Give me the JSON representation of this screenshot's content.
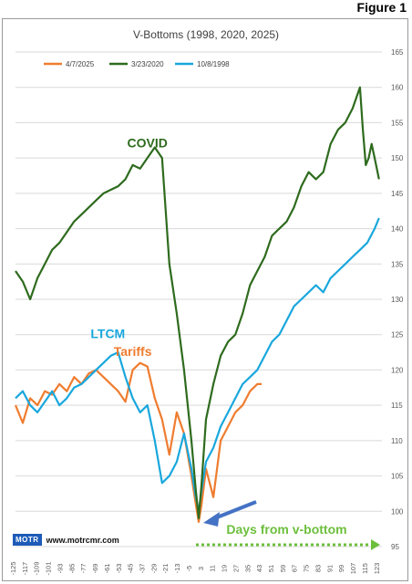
{
  "figure_label": "Figure 1",
  "brand": {
    "logo_text": "MOTR",
    "website": "www.motrcmr.com"
  },
  "chart_data": {
    "type": "line",
    "title": "V-Bottoms (1998, 2020, 2025)",
    "xlabel": "",
    "ylabel": "",
    "ylim": [
      95,
      165
    ],
    "yticks": [
      95,
      100,
      105,
      110,
      115,
      120,
      125,
      130,
      135,
      140,
      145,
      150,
      155,
      160,
      165
    ],
    "xlim": [
      -125,
      125
    ],
    "xticks": [
      -125,
      -117,
      -109,
      -101,
      -93,
      -85,
      -77,
      -69,
      -61,
      -53,
      -45,
      -37,
      -29,
      -21,
      -13,
      -5,
      3,
      11,
      19,
      27,
      35,
      43,
      51,
      59,
      67,
      75,
      83,
      91,
      99,
      107,
      115,
      123
    ],
    "grid": "horizontal",
    "legend_position": "top-left",
    "annotations": [
      {
        "text": "COVID",
        "color": "#2e6b1e",
        "x": -35,
        "y": 151.5
      },
      {
        "text": "LTCM",
        "color": "#19a7dd",
        "x": -62,
        "y": 124.5
      },
      {
        "text": "Tariffs",
        "color": "#ef7c2f",
        "x": -45,
        "y": 122
      },
      {
        "text": "Days from v-bottom",
        "color": "#6cbf3c",
        "x": 60,
        "y": 96.8
      }
    ],
    "series": [
      {
        "name": "4/7/2025",
        "color": "#ef7c2f",
        "x": [
          -125,
          -120,
          -115,
          -110,
          -105,
          -100,
          -95,
          -90,
          -85,
          -80,
          -75,
          -70,
          -65,
          -60,
          -55,
          -50,
          -45,
          -40,
          -35,
          -30,
          -25,
          -20,
          -15,
          -10,
          -5,
          -2,
          0,
          2,
          5,
          10,
          15,
          20,
          25,
          30,
          35,
          40,
          43
        ],
        "y": [
          115,
          112.5,
          116,
          115,
          117,
          116.5,
          118,
          117,
          119,
          118,
          119.5,
          120,
          119,
          118,
          117,
          115.5,
          120,
          121,
          120.5,
          116,
          113,
          108,
          114,
          111,
          105,
          101,
          98.5,
          101,
          106,
          102,
          110,
          112,
          114,
          115,
          117,
          118,
          118
        ]
      },
      {
        "name": "3/23/2020",
        "color": "#2e6b1e",
        "x": [
          -125,
          -120,
          -115,
          -110,
          -105,
          -100,
          -95,
          -90,
          -85,
          -80,
          -75,
          -70,
          -65,
          -60,
          -55,
          -50,
          -45,
          -40,
          -35,
          -30,
          -25,
          -20,
          -15,
          -10,
          -5,
          -2,
          0,
          2,
          5,
          10,
          15,
          20,
          25,
          30,
          35,
          40,
          45,
          50,
          55,
          60,
          65,
          70,
          75,
          80,
          85,
          90,
          95,
          100,
          105,
          110,
          112,
          114,
          116,
          118,
          120,
          123
        ],
        "y": [
          134,
          132.5,
          130,
          133,
          135,
          137,
          138,
          139.5,
          141,
          142,
          143,
          144,
          145,
          145.5,
          146,
          147,
          149,
          148.5,
          150,
          151.5,
          150,
          135,
          128,
          120,
          110,
          103,
          99,
          104,
          113,
          118,
          122,
          124,
          125,
          128,
          132,
          134,
          136,
          139,
          140,
          141,
          143,
          146,
          148,
          147,
          148,
          152,
          154,
          155,
          157,
          160,
          154,
          149,
          150,
          152,
          150,
          147
        ]
      },
      {
        "name": "10/8/1998",
        "color": "#19a7dd",
        "x": [
          -125,
          -120,
          -115,
          -110,
          -105,
          -100,
          -95,
          -90,
          -85,
          -80,
          -75,
          -70,
          -65,
          -60,
          -55,
          -50,
          -45,
          -40,
          -35,
          -30,
          -25,
          -20,
          -15,
          -10,
          -5,
          -2,
          0,
          2,
          5,
          10,
          15,
          20,
          25,
          30,
          35,
          40,
          45,
          50,
          55,
          60,
          65,
          70,
          75,
          80,
          85,
          90,
          95,
          100,
          105,
          110,
          115,
          120,
          123
        ],
        "y": [
          116,
          117,
          115,
          114,
          115.5,
          117,
          115,
          116,
          117.5,
          118,
          119,
          120,
          121,
          122,
          122.5,
          119,
          116,
          114,
          115,
          110,
          104,
          105,
          107,
          111,
          106,
          102,
          100,
          103,
          107,
          109,
          112,
          114,
          116,
          118,
          119,
          120,
          122,
          124,
          125,
          127,
          129,
          130,
          131,
          132,
          131,
          133,
          134,
          135,
          136,
          137,
          138,
          140,
          141.5
        ]
      }
    ]
  }
}
